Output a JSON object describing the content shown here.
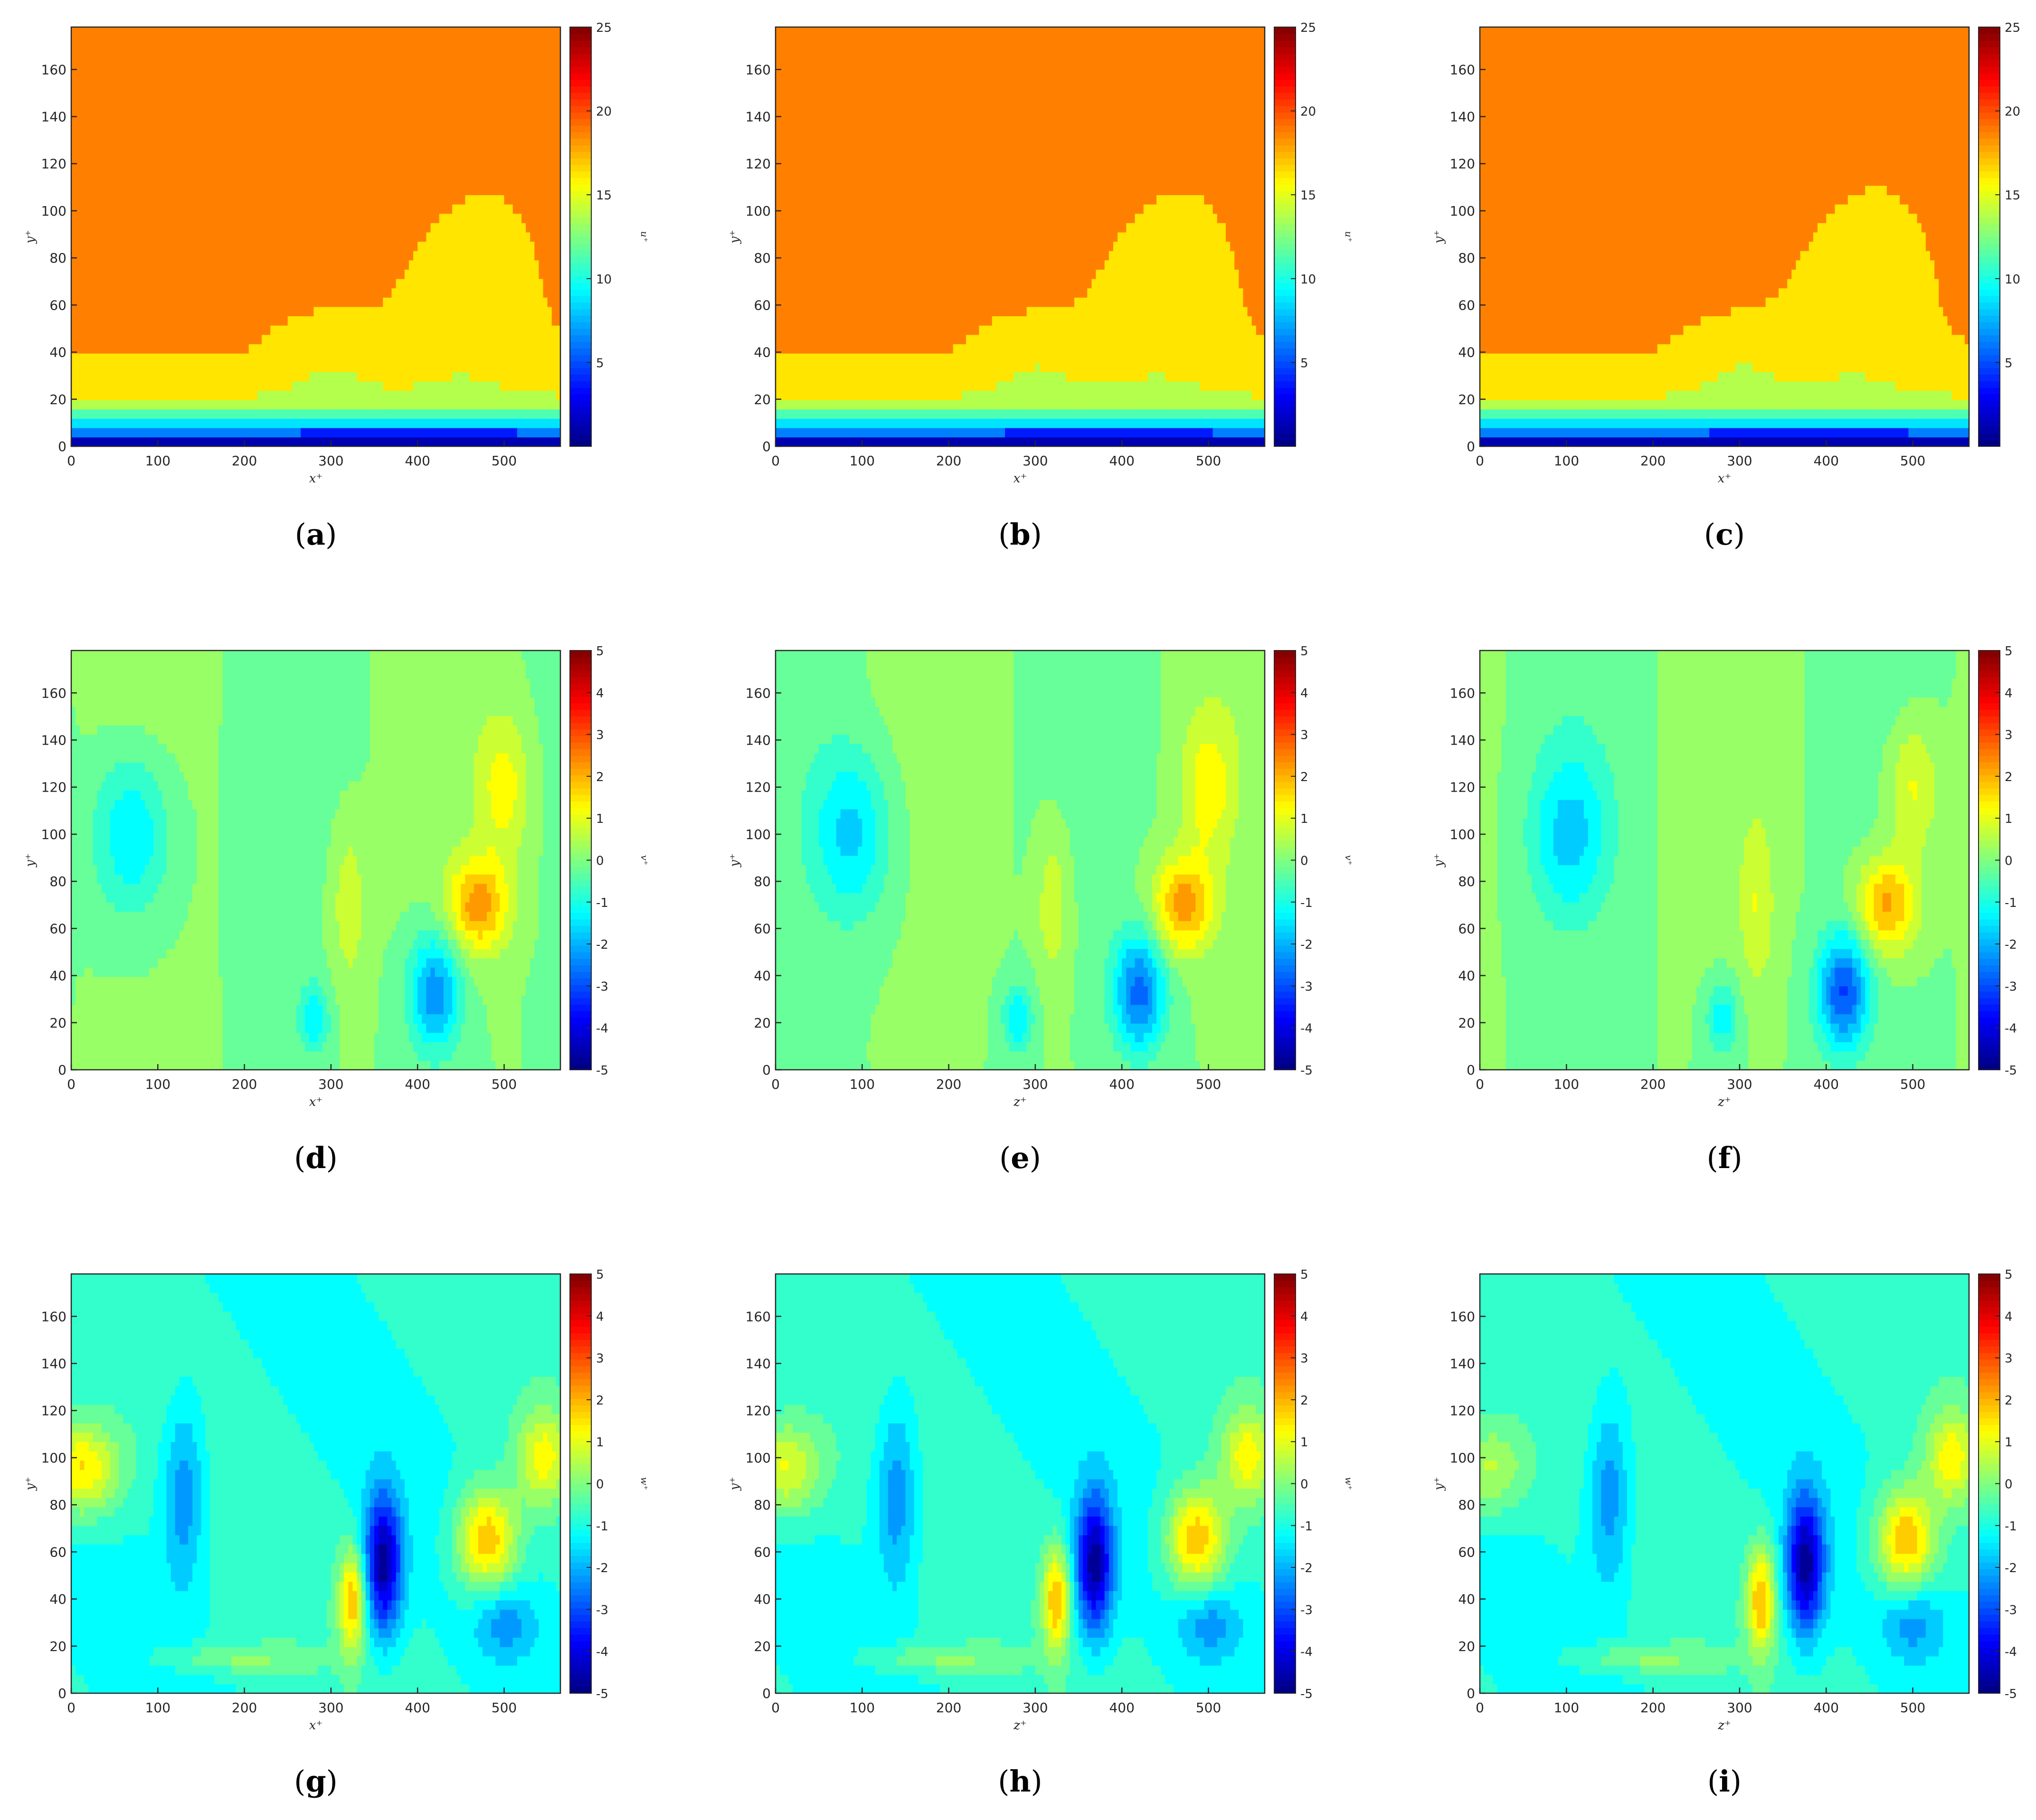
{
  "figure": {
    "panels": [
      {
        "letter": "a",
        "x_label": "x⁺",
        "y_label": "y⁺",
        "cbar_label": "u⁺"
      },
      {
        "letter": "b",
        "x_label": "x⁺",
        "y_label": "y⁺",
        "cbar_label": "u⁺"
      },
      {
        "letter": "c",
        "x_label": "x⁺",
        "y_label": "y⁺",
        "cbar_label": "u⁺"
      },
      {
        "letter": "d",
        "x_label": "x⁺",
        "y_label": "y⁺",
        "cbar_label": "v⁺"
      },
      {
        "letter": "e",
        "x_label": "z⁺",
        "y_label": "y⁺",
        "cbar_label": "v⁺"
      },
      {
        "letter": "f",
        "x_label": "z⁺",
        "y_label": "y⁺",
        "cbar_label": "v⁺"
      },
      {
        "letter": "g",
        "x_label": "x⁺",
        "y_label": "y⁺",
        "cbar_label": "w⁺"
      },
      {
        "letter": "h",
        "x_label": "z⁺",
        "y_label": "y⁺",
        "cbar_label": "w⁺"
      },
      {
        "letter": "i",
        "x_label": "z⁺",
        "y_label": "y⁺",
        "cbar_label": "w⁺"
      }
    ]
  },
  "chart_data": [
    {
      "type": "heatmap",
      "panel": "a",
      "variable": "u⁺",
      "xlabel": "x⁺",
      "ylabel": "y⁺",
      "xlim": [
        0,
        565
      ],
      "ylim": [
        0,
        178
      ],
      "xticks": [
        0,
        100,
        200,
        300,
        400,
        500
      ],
      "yticks": [
        0,
        20,
        40,
        60,
        80,
        100,
        120,
        140,
        160
      ],
      "clim": [
        0,
        25
      ],
      "cticks": [
        5,
        10,
        15,
        20,
        25
      ],
      "colormap": "jet",
      "levels": 10
    },
    {
      "type": "heatmap",
      "panel": "b",
      "variable": "u⁺",
      "xlabel": "x⁺",
      "ylabel": "y⁺",
      "xlim": [
        0,
        565
      ],
      "ylim": [
        0,
        178
      ],
      "xticks": [
        0,
        100,
        200,
        300,
        400,
        500
      ],
      "yticks": [
        0,
        20,
        40,
        60,
        80,
        100,
        120,
        140,
        160
      ],
      "clim": [
        0,
        25
      ],
      "cticks": [
        5,
        10,
        15,
        20,
        25
      ],
      "colormap": "jet",
      "levels": 10
    },
    {
      "type": "heatmap",
      "panel": "c",
      "variable": "u⁺",
      "xlabel": "x⁺",
      "ylabel": "y⁺",
      "xlim": [
        0,
        565
      ],
      "ylim": [
        0,
        178
      ],
      "xticks": [
        0,
        100,
        200,
        300,
        400,
        500
      ],
      "yticks": [
        0,
        20,
        40,
        60,
        80,
        100,
        120,
        140,
        160
      ],
      "clim": [
        0,
        25
      ],
      "cticks": [
        5,
        10,
        15,
        20,
        25
      ],
      "colormap": "jet",
      "levels": 10
    },
    {
      "type": "heatmap",
      "panel": "d",
      "variable": "v⁺",
      "xlabel": "x⁺",
      "ylabel": "y⁺",
      "xlim": [
        0,
        565
      ],
      "ylim": [
        0,
        178
      ],
      "xticks": [
        0,
        100,
        200,
        300,
        400,
        500
      ],
      "yticks": [
        0,
        20,
        40,
        60,
        80,
        100,
        120,
        140,
        160
      ],
      "clim": [
        -5,
        5
      ],
      "cticks": [
        -5,
        -4,
        -3,
        -2,
        -1,
        0,
        1,
        2,
        3,
        4,
        5
      ],
      "colormap": "jet",
      "levels": 20
    },
    {
      "type": "heatmap",
      "panel": "e",
      "variable": "v⁺",
      "xlabel": "z⁺",
      "ylabel": "y⁺",
      "xlim": [
        0,
        565
      ],
      "ylim": [
        0,
        178
      ],
      "xticks": [
        0,
        100,
        200,
        300,
        400,
        500
      ],
      "yticks": [
        0,
        20,
        40,
        60,
        80,
        100,
        120,
        140,
        160
      ],
      "clim": [
        -5,
        5
      ],
      "cticks": [
        -5,
        -4,
        -3,
        -2,
        -1,
        0,
        1,
        2,
        3,
        4,
        5
      ],
      "colormap": "jet",
      "levels": 20
    },
    {
      "type": "heatmap",
      "panel": "f",
      "variable": "v⁺",
      "xlabel": "z⁺",
      "ylabel": "y⁺",
      "xlim": [
        0,
        565
      ],
      "ylim": [
        0,
        178
      ],
      "xticks": [
        0,
        100,
        200,
        300,
        400,
        500
      ],
      "yticks": [
        0,
        20,
        40,
        60,
        80,
        100,
        120,
        140,
        160
      ],
      "clim": [
        -5,
        5
      ],
      "cticks": [
        -5,
        -4,
        -3,
        -2,
        -1,
        0,
        1,
        2,
        3,
        4,
        5
      ],
      "colormap": "jet",
      "levels": 20
    },
    {
      "type": "heatmap",
      "panel": "g",
      "variable": "w⁺",
      "xlabel": "x⁺",
      "ylabel": "y⁺",
      "xlim": [
        0,
        565
      ],
      "ylim": [
        0,
        178
      ],
      "xticks": [
        0,
        100,
        200,
        300,
        400,
        500
      ],
      "yticks": [
        0,
        20,
        40,
        60,
        80,
        100,
        120,
        140,
        160
      ],
      "clim": [
        -5,
        5
      ],
      "cticks": [
        -5,
        -4,
        -3,
        -2,
        -1,
        0,
        1,
        2,
        3,
        4,
        5
      ],
      "colormap": "jet",
      "levels": 20
    },
    {
      "type": "heatmap",
      "panel": "h",
      "variable": "w⁺",
      "xlabel": "z⁺",
      "ylabel": "y⁺",
      "xlim": [
        0,
        565
      ],
      "ylim": [
        0,
        178
      ],
      "xticks": [
        0,
        100,
        200,
        300,
        400,
        500
      ],
      "yticks": [
        0,
        20,
        40,
        60,
        80,
        100,
        120,
        140,
        160
      ],
      "clim": [
        -5,
        5
      ],
      "cticks": [
        -5,
        -4,
        -3,
        -2,
        -1,
        0,
        1,
        2,
        3,
        4,
        5
      ],
      "colormap": "jet",
      "levels": 20
    },
    {
      "type": "heatmap",
      "panel": "i",
      "variable": "w⁺",
      "xlabel": "z⁺",
      "ylabel": "y⁺",
      "xlim": [
        0,
        565
      ],
      "ylim": [
        0,
        178
      ],
      "xticks": [
        0,
        100,
        200,
        300,
        400,
        500
      ],
      "yticks": [
        0,
        20,
        40,
        60,
        80,
        100,
        120,
        140,
        160
      ],
      "clim": [
        -5,
        5
      ],
      "cticks": [
        -5,
        -4,
        -3,
        -2,
        -1,
        0,
        1,
        2,
        3,
        4,
        5
      ],
      "colormap": "jet",
      "levels": 20
    }
  ]
}
